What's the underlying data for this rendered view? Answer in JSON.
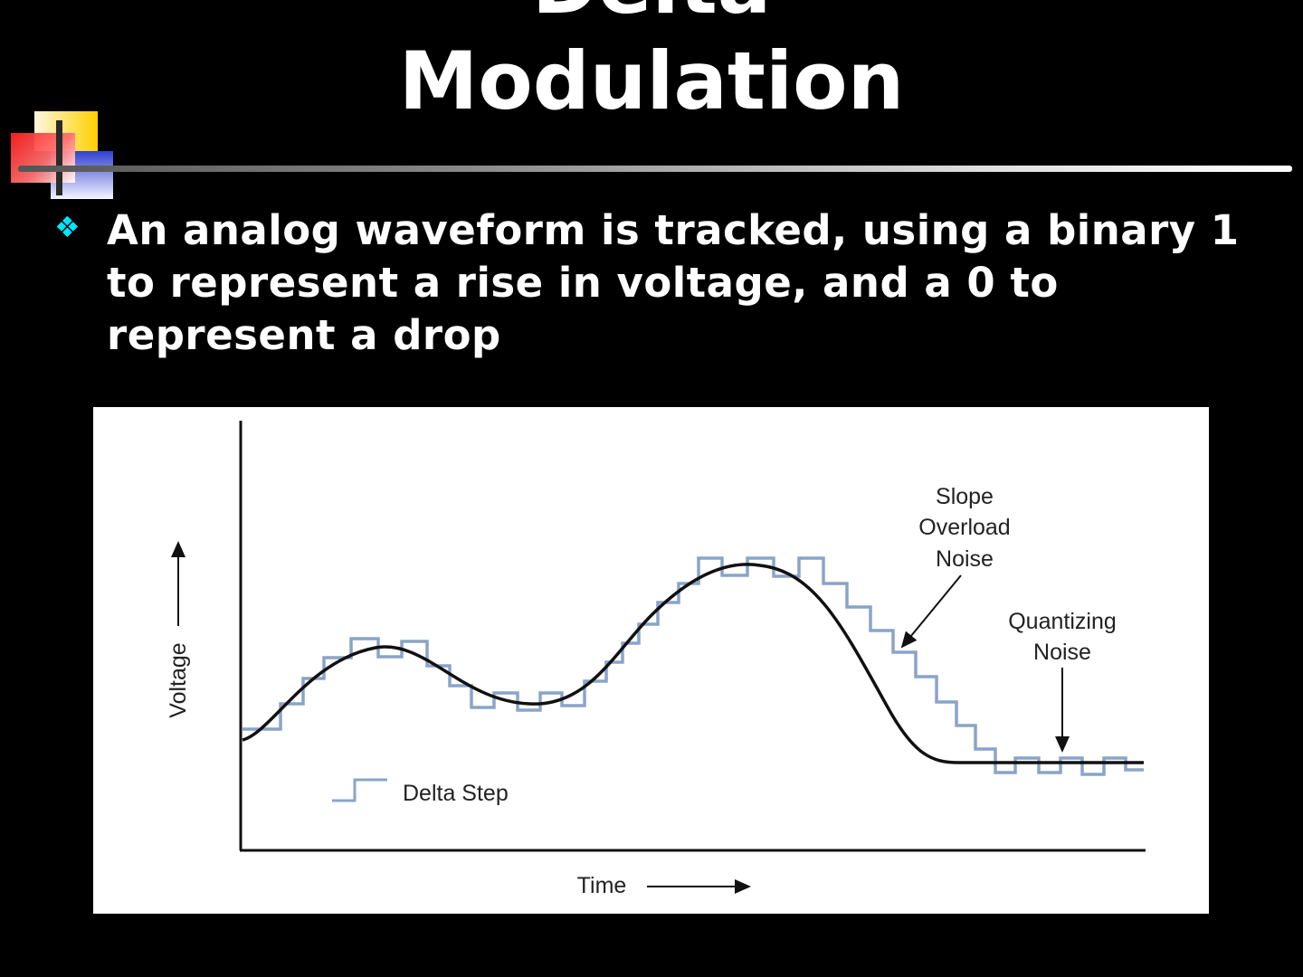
{
  "slide": {
    "title_line1": "Delta",
    "title_line2": "Modulation",
    "bullet_icon": "diamond-bullet-icon",
    "bullet_text": "An analog waveform is tracked, using a binary 1 to represent a rise in voltage, and a 0 to represent a drop",
    "accent_color": "#00e5ff"
  },
  "diagram": {
    "y_axis_label": "Voltage",
    "x_axis_label": "Time",
    "legend_label": "Delta Step",
    "annotation_slope": [
      "Slope",
      "Overload",
      "Noise"
    ],
    "annotation_quant": [
      "Quantizing",
      "Noise"
    ],
    "step_color": "#8aa4c8",
    "curve_color": "#111111"
  }
}
